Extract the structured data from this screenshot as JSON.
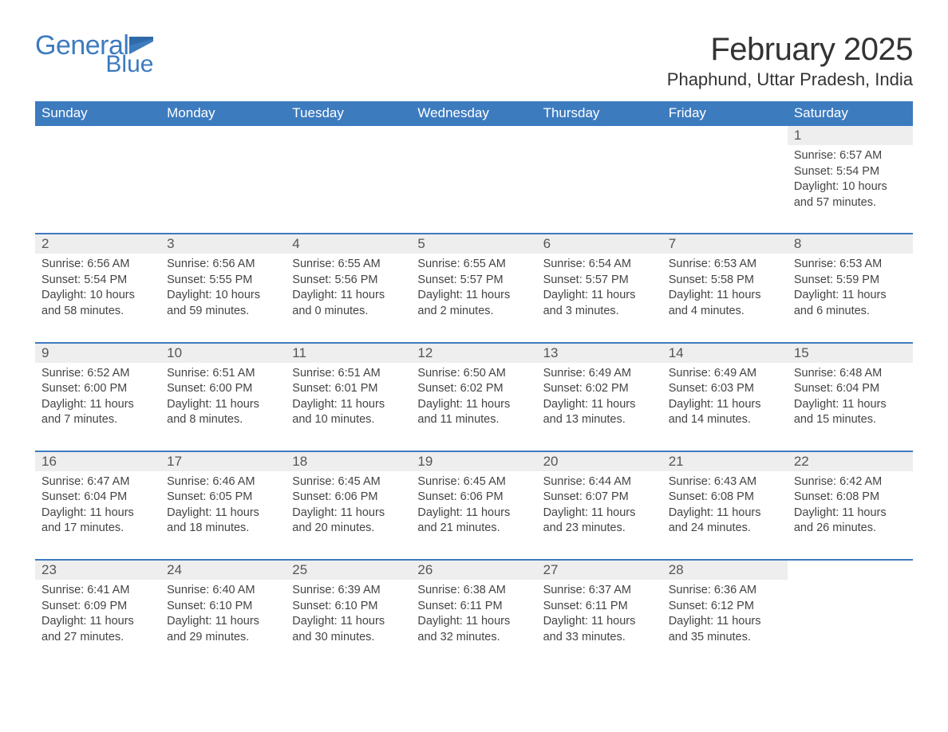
{
  "logo": {
    "word1": "General",
    "word2": "Blue",
    "color": "#3d7bbf"
  },
  "title": "February 2025",
  "location": "Phaphund, Uttar Pradesh, India",
  "weekdays": [
    "Sunday",
    "Monday",
    "Tuesday",
    "Wednesday",
    "Thursday",
    "Friday",
    "Saturday"
  ],
  "colors": {
    "header_bg": "#3d7bbf",
    "header_text": "#ffffff",
    "daynum_bg": "#eeeeee",
    "daynum_text": "#555555",
    "body_text": "#444444",
    "rule": "#3d7bbf",
    "page_bg": "#ffffff"
  },
  "fonts": {
    "title_size_pt": 30,
    "location_size_pt": 17,
    "weekday_size_pt": 13,
    "daynum_size_pt": 13,
    "body_size_pt": 11
  },
  "weeks": [
    {
      "days": [
        null,
        null,
        null,
        null,
        null,
        null,
        {
          "n": "1",
          "sunrise": "6:57 AM",
          "sunset": "5:54 PM",
          "daylight": "10 hours and 57 minutes."
        }
      ]
    },
    {
      "days": [
        {
          "n": "2",
          "sunrise": "6:56 AM",
          "sunset": "5:54 PM",
          "daylight": "10 hours and 58 minutes."
        },
        {
          "n": "3",
          "sunrise": "6:56 AM",
          "sunset": "5:55 PM",
          "daylight": "10 hours and 59 minutes."
        },
        {
          "n": "4",
          "sunrise": "6:55 AM",
          "sunset": "5:56 PM",
          "daylight": "11 hours and 0 minutes."
        },
        {
          "n": "5",
          "sunrise": "6:55 AM",
          "sunset": "5:57 PM",
          "daylight": "11 hours and 2 minutes."
        },
        {
          "n": "6",
          "sunrise": "6:54 AM",
          "sunset": "5:57 PM",
          "daylight": "11 hours and 3 minutes."
        },
        {
          "n": "7",
          "sunrise": "6:53 AM",
          "sunset": "5:58 PM",
          "daylight": "11 hours and 4 minutes."
        },
        {
          "n": "8",
          "sunrise": "6:53 AM",
          "sunset": "5:59 PM",
          "daylight": "11 hours and 6 minutes."
        }
      ]
    },
    {
      "days": [
        {
          "n": "9",
          "sunrise": "6:52 AM",
          "sunset": "6:00 PM",
          "daylight": "11 hours and 7 minutes."
        },
        {
          "n": "10",
          "sunrise": "6:51 AM",
          "sunset": "6:00 PM",
          "daylight": "11 hours and 8 minutes."
        },
        {
          "n": "11",
          "sunrise": "6:51 AM",
          "sunset": "6:01 PM",
          "daylight": "11 hours and 10 minutes."
        },
        {
          "n": "12",
          "sunrise": "6:50 AM",
          "sunset": "6:02 PM",
          "daylight": "11 hours and 11 minutes."
        },
        {
          "n": "13",
          "sunrise": "6:49 AM",
          "sunset": "6:02 PM",
          "daylight": "11 hours and 13 minutes."
        },
        {
          "n": "14",
          "sunrise": "6:49 AM",
          "sunset": "6:03 PM",
          "daylight": "11 hours and 14 minutes."
        },
        {
          "n": "15",
          "sunrise": "6:48 AM",
          "sunset": "6:04 PM",
          "daylight": "11 hours and 15 minutes."
        }
      ]
    },
    {
      "days": [
        {
          "n": "16",
          "sunrise": "6:47 AM",
          "sunset": "6:04 PM",
          "daylight": "11 hours and 17 minutes."
        },
        {
          "n": "17",
          "sunrise": "6:46 AM",
          "sunset": "6:05 PM",
          "daylight": "11 hours and 18 minutes."
        },
        {
          "n": "18",
          "sunrise": "6:45 AM",
          "sunset": "6:06 PM",
          "daylight": "11 hours and 20 minutes."
        },
        {
          "n": "19",
          "sunrise": "6:45 AM",
          "sunset": "6:06 PM",
          "daylight": "11 hours and 21 minutes."
        },
        {
          "n": "20",
          "sunrise": "6:44 AM",
          "sunset": "6:07 PM",
          "daylight": "11 hours and 23 minutes."
        },
        {
          "n": "21",
          "sunrise": "6:43 AM",
          "sunset": "6:08 PM",
          "daylight": "11 hours and 24 minutes."
        },
        {
          "n": "22",
          "sunrise": "6:42 AM",
          "sunset": "6:08 PM",
          "daylight": "11 hours and 26 minutes."
        }
      ]
    },
    {
      "days": [
        {
          "n": "23",
          "sunrise": "6:41 AM",
          "sunset": "6:09 PM",
          "daylight": "11 hours and 27 minutes."
        },
        {
          "n": "24",
          "sunrise": "6:40 AM",
          "sunset": "6:10 PM",
          "daylight": "11 hours and 29 minutes."
        },
        {
          "n": "25",
          "sunrise": "6:39 AM",
          "sunset": "6:10 PM",
          "daylight": "11 hours and 30 minutes."
        },
        {
          "n": "26",
          "sunrise": "6:38 AM",
          "sunset": "6:11 PM",
          "daylight": "11 hours and 32 minutes."
        },
        {
          "n": "27",
          "sunrise": "6:37 AM",
          "sunset": "6:11 PM",
          "daylight": "11 hours and 33 minutes."
        },
        {
          "n": "28",
          "sunrise": "6:36 AM",
          "sunset": "6:12 PM",
          "daylight": "11 hours and 35 minutes."
        },
        null
      ]
    }
  ],
  "labels": {
    "sunrise": "Sunrise: ",
    "sunset": "Sunset: ",
    "daylight": "Daylight: "
  }
}
